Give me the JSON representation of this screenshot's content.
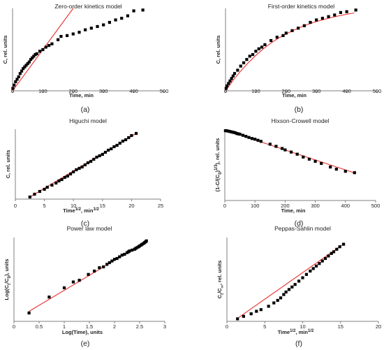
{
  "colors": {
    "points": "#000000",
    "fit_line": "#e8312f",
    "axis": "#7f7f7f"
  },
  "chart_data": [
    {
      "type": "scatter",
      "title": "Zero-order kinetics model",
      "xlabel": "Time, min",
      "ylabel": "C, rel. units",
      "caption": "(a)",
      "xlim": [
        0,
        500
      ],
      "ylim": [
        0,
        1
      ],
      "xticks": [
        "0",
        "100",
        "200",
        "300",
        "400",
        "500"
      ],
      "x": [
        1,
        5,
        10,
        15,
        20,
        25,
        30,
        35,
        40,
        45,
        50,
        55,
        60,
        65,
        70,
        75,
        80,
        90,
        100,
        110,
        120,
        130,
        150,
        160,
        180,
        200,
        220,
        240,
        260,
        280,
        300,
        320,
        340,
        360,
        380,
        400,
        430
      ],
      "y": [
        0.03,
        0.07,
        0.11,
        0.14,
        0.17,
        0.21,
        0.24,
        0.27,
        0.29,
        0.31,
        0.33,
        0.35,
        0.38,
        0.4,
        0.42,
        0.44,
        0.45,
        0.48,
        0.5,
        0.53,
        0.55,
        0.57,
        0.62,
        0.66,
        0.67,
        0.69,
        0.71,
        0.74,
        0.76,
        0.78,
        0.8,
        0.83,
        0.86,
        0.88,
        0.91,
        0.97,
        0.98
      ],
      "fit": {
        "x": [
          0,
          200
        ],
        "y": [
          0.0,
          1.0
        ]
      }
    },
    {
      "type": "scatter",
      "title": "First-order kinetics model",
      "xlabel": "Time, min",
      "ylabel": "C, rel. units",
      "caption": "(b)",
      "xlim": [
        0,
        500
      ],
      "ylim": [
        0,
        1
      ],
      "xticks": [
        "0",
        "100",
        "200",
        "300",
        "400",
        "500"
      ],
      "x": [
        2,
        5,
        10,
        15,
        20,
        25,
        30,
        40,
        50,
        60,
        70,
        80,
        90,
        100,
        110,
        120,
        130,
        150,
        170,
        190,
        200,
        220,
        240,
        260,
        280,
        300,
        320,
        340,
        360,
        380,
        400,
        430
      ],
      "y": [
        0.03,
        0.06,
        0.09,
        0.12,
        0.15,
        0.18,
        0.21,
        0.25,
        0.3,
        0.34,
        0.38,
        0.42,
        0.44,
        0.48,
        0.51,
        0.53,
        0.56,
        0.61,
        0.65,
        0.67,
        0.7,
        0.73,
        0.76,
        0.79,
        0.83,
        0.86,
        0.88,
        0.9,
        0.92,
        0.95,
        0.96,
        0.98
      ],
      "fit": {
        "x": [
          0,
          25,
          50,
          75,
          100,
          125,
          150,
          175,
          200,
          225,
          250,
          275,
          300,
          325,
          350,
          375,
          400,
          425
        ],
        "y": [
          0.0,
          0.128,
          0.24,
          0.34,
          0.43,
          0.51,
          0.58,
          0.64,
          0.69,
          0.735,
          0.775,
          0.81,
          0.84,
          0.865,
          0.89,
          0.91,
          0.93,
          0.945
        ]
      }
    },
    {
      "type": "scatter",
      "title": "Higuchi model",
      "xlabel": "Time1/2, min1/2",
      "ylabel": "C, rel. units",
      "caption": "(c)",
      "xlim": [
        0,
        25
      ],
      "ylim": [
        0,
        1
      ],
      "xticks": [
        "0",
        "5",
        "10",
        "15",
        "20",
        "25"
      ],
      "x": [
        2.5,
        3.3,
        4.2,
        5,
        5.5,
        6.3,
        7,
        7.5,
        8,
        8.5,
        9,
        9.5,
        10,
        10.5,
        11,
        11.5,
        12,
        12.5,
        13,
        13.5,
        14,
        14.5,
        15,
        15.5,
        16,
        16.5,
        17,
        17.5,
        18,
        18.5,
        19,
        19.5,
        20,
        20.8
      ],
      "y": [
        0.03,
        0.07,
        0.11,
        0.14,
        0.17,
        0.2,
        0.23,
        0.26,
        0.28,
        0.31,
        0.33,
        0.36,
        0.39,
        0.42,
        0.44,
        0.46,
        0.49,
        0.52,
        0.54,
        0.57,
        0.6,
        0.62,
        0.64,
        0.67,
        0.7,
        0.72,
        0.75,
        0.77,
        0.8,
        0.83,
        0.85,
        0.88,
        0.91,
        0.94
      ],
      "fit": {
        "x": [
          2.3,
          21
        ],
        "y": [
          0.02,
          0.95
        ]
      }
    },
    {
      "type": "scatter",
      "title": "Hixson-Crowell model",
      "xlabel": "Time, min",
      "ylabel": "(1-C/(C0)1/3), rel. units",
      "caption": "(d)",
      "xlim": [
        0,
        500
      ],
      "ylim": [
        0,
        1
      ],
      "xticks": [
        "0",
        "100",
        "200",
        "300",
        "400",
        "500"
      ],
      "x": [
        2,
        5,
        10,
        15,
        20,
        25,
        30,
        35,
        40,
        45,
        50,
        60,
        70,
        80,
        90,
        100,
        110,
        120,
        150,
        170,
        190,
        200,
        220,
        240,
        260,
        280,
        300,
        320,
        350,
        370,
        400,
        430
      ],
      "y": [
        0.98,
        0.98,
        0.975,
        0.97,
        0.965,
        0.96,
        0.955,
        0.95,
        0.94,
        0.935,
        0.93,
        0.915,
        0.9,
        0.885,
        0.87,
        0.86,
        0.845,
        0.83,
        0.79,
        0.76,
        0.73,
        0.71,
        0.68,
        0.65,
        0.61,
        0.58,
        0.55,
        0.52,
        0.47,
        0.44,
        0.41,
        0.39
      ],
      "fit": {
        "x": [
          0,
          435
        ],
        "y": [
          0.99,
          0.38
        ]
      }
    },
    {
      "type": "scatter",
      "title": "Power law model",
      "xlabel": "Log(Time), units",
      "ylabel": "Log(Ct/C0), units",
      "caption": "(e)",
      "xlim": [
        0,
        3
      ],
      "ylim": [
        0,
        1
      ],
      "xticks": [
        "0",
        "0.5",
        "1",
        "1.5",
        "2",
        "2.5",
        "3"
      ],
      "x": [
        0.3,
        0.7,
        1.0,
        1.18,
        1.3,
        1.48,
        1.6,
        1.7,
        1.78,
        1.85,
        1.9,
        1.95,
        2.0,
        2.05,
        2.1,
        2.15,
        2.2,
        2.25,
        2.28,
        2.3,
        2.35,
        2.4,
        2.42,
        2.45,
        2.48,
        2.5,
        2.53,
        2.55,
        2.58,
        2.6,
        2.62,
        2.635
      ],
      "y": [
        0.1,
        0.29,
        0.4,
        0.47,
        0.49,
        0.56,
        0.6,
        0.64,
        0.65,
        0.68,
        0.7,
        0.72,
        0.74,
        0.75,
        0.77,
        0.79,
        0.8,
        0.82,
        0.83,
        0.84,
        0.85,
        0.86,
        0.87,
        0.88,
        0.89,
        0.9,
        0.91,
        0.92,
        0.93,
        0.94,
        0.95,
        0.96
      ],
      "fit": {
        "x": [
          0.3,
          2.65
        ],
        "y": [
          0.12,
          0.96
        ]
      }
    },
    {
      "type": "scatter",
      "title": "Peppas-Sahlin model",
      "xlabel": "Time1/2, min1/2",
      "ylabel": "Ct/C∞, rel. units",
      "caption": "(f)",
      "xlim": [
        0,
        20
      ],
      "ylim": [
        0,
        1
      ],
      "xticks": [
        "0",
        "5",
        "10",
        "15",
        "20"
      ],
      "x": [
        1.4,
        2.2,
        3.2,
        3.9,
        4.5,
        5.5,
        6.2,
        6.7,
        7.1,
        7.5,
        7.8,
        8.2,
        8.6,
        9,
        9.5,
        10,
        10.5,
        11,
        11.4,
        11.8,
        12.2,
        12.6,
        13.0,
        13.4,
        13.8,
        14.1,
        14.5,
        14.9,
        15.4
      ],
      "y": [
        0.03,
        0.06,
        0.09,
        0.12,
        0.14,
        0.18,
        0.22,
        0.25,
        0.28,
        0.32,
        0.35,
        0.38,
        0.41,
        0.44,
        0.48,
        0.52,
        0.56,
        0.6,
        0.63,
        0.66,
        0.69,
        0.72,
        0.75,
        0.78,
        0.81,
        0.83,
        0.86,
        0.89,
        0.92
      ],
      "fit": {
        "x": [
          1.3,
          15.5
        ],
        "y": [
          0.03,
          0.93
        ]
      }
    }
  ]
}
